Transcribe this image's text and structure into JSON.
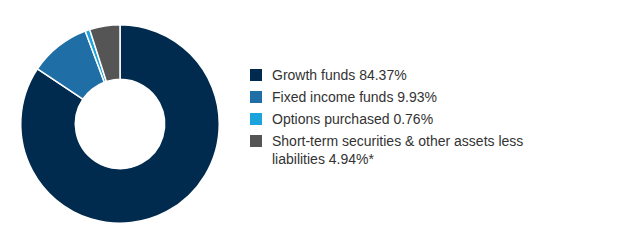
{
  "chart_data": {
    "type": "doughnut",
    "categories": [
      "Growth funds 84.37%",
      "Fixed income funds 9.93%",
      "Options purchased 0.76%",
      "Short-term securities & other assets less liabilities 4.94%*"
    ],
    "values": [
      84.37,
      9.93,
      0.76,
      4.94
    ],
    "colors": [
      "#002b4e",
      "#1f6ea6",
      "#1aa3dc",
      "#555555"
    ],
    "legend": "right"
  }
}
